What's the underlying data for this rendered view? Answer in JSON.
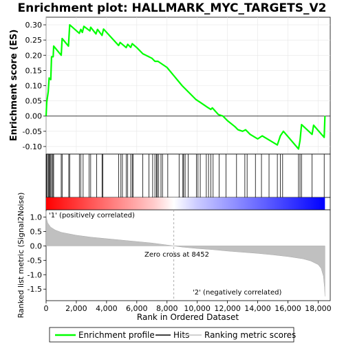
{
  "chart_data": {
    "title": "Enrichment plot: HALLMARK_MYC_TARGETS_V2",
    "panels": [
      {
        "type": "line",
        "name": "enrichment",
        "ylabel": "Enrichment score (ES)",
        "xlim": [
          0,
          18800
        ],
        "ylim": [
          -0.125,
          0.325
        ],
        "yticks": [
          -0.1,
          -0.05,
          0.0,
          0.05,
          0.1,
          0.15,
          0.2,
          0.25,
          0.3
        ],
        "ytick_labels": [
          "-0.10",
          "-0.05",
          "0.00",
          "0.05",
          "0.10",
          "0.15",
          "0.20",
          "0.25",
          "0.30"
        ],
        "series": [
          {
            "name": "Enrichment profile",
            "color": "#00ff00",
            "points": [
              [
                0,
                0.0
              ],
              [
                40,
                0.045
              ],
              [
                140,
                0.08
              ],
              [
                200,
                0.125
              ],
              [
                310,
                0.12
              ],
              [
                360,
                0.195
              ],
              [
                470,
                0.195
              ],
              [
                500,
                0.23
              ],
              [
                1000,
                0.2
              ],
              [
                1060,
                0.255
              ],
              [
                1480,
                0.23
              ],
              [
                1560,
                0.3
              ],
              [
                2200,
                0.272
              ],
              [
                2300,
                0.285
              ],
              [
                2400,
                0.275
              ],
              [
                2500,
                0.295
              ],
              [
                2900,
                0.28
              ],
              [
                2950,
                0.292
              ],
              [
                3300,
                0.27
              ],
              [
                3400,
                0.285
              ],
              [
                3700,
                0.265
              ],
              [
                3800,
                0.286
              ],
              [
                4800,
                0.232
              ],
              [
                4900,
                0.242
              ],
              [
                5300,
                0.225
              ],
              [
                5400,
                0.236
              ],
              [
                5600,
                0.226
              ],
              [
                5700,
                0.238
              ],
              [
                6000,
                0.225
              ],
              [
                6400,
                0.205
              ],
              [
                7000,
                0.19
              ],
              [
                7200,
                0.18
              ],
              [
                7400,
                0.18
              ],
              [
                8000,
                0.16
              ],
              [
                9000,
                0.1
              ],
              [
                9900,
                0.055
              ],
              [
                10200,
                0.045
              ],
              [
                10700,
                0.028
              ],
              [
                10900,
                0.022
              ],
              [
                11000,
                0.027
              ],
              [
                11400,
                0.005
              ],
              [
                11700,
                0.0
              ],
              [
                12000,
                -0.015
              ],
              [
                12500,
                -0.035
              ],
              [
                12700,
                -0.045
              ],
              [
                13000,
                -0.05
              ],
              [
                13200,
                -0.045
              ],
              [
                13500,
                -0.06
              ],
              [
                14000,
                -0.075
              ],
              [
                14300,
                -0.065
              ],
              [
                14800,
                -0.08
              ],
              [
                15300,
                -0.095
              ],
              [
                15500,
                -0.065
              ],
              [
                15700,
                -0.05
              ],
              [
                16700,
                -0.108
              ],
              [
                16800,
                -0.08
              ],
              [
                16900,
                -0.028
              ],
              [
                17600,
                -0.06
              ],
              [
                17700,
                -0.03
              ],
              [
                18400,
                -0.07
              ],
              [
                18450,
                0.0
              ]
            ]
          }
        ],
        "zero_line": 0.0
      },
      {
        "type": "rug",
        "name": "hits",
        "series_name": "Hits",
        "hit_ranks": [
          30,
          90,
          150,
          210,
          260,
          310,
          380,
          450,
          500,
          1000,
          1060,
          1500,
          1560,
          2200,
          2300,
          2450,
          2850,
          2950,
          3350,
          3700,
          3750,
          4800,
          4950,
          5050,
          5300,
          5400,
          5600,
          5700,
          5750,
          6400,
          6800,
          7050,
          7200,
          7300,
          7350,
          7450,
          7600,
          7700,
          8050,
          8800,
          9050,
          9100,
          9200,
          9400,
          9950,
          10050,
          10200,
          10600,
          10750,
          10900,
          11050,
          11450,
          11900,
          12600,
          13150,
          13300,
          13850,
          14250,
          14750,
          15300,
          15500,
          15650,
          16700,
          16800,
          16900,
          17600,
          18400
        ]
      },
      {
        "type": "heatmap",
        "name": "rank-colour-bar",
        "colors": {
          "positive": "#ff0000",
          "neutral": "#ffffff",
          "negative": "#0000ff"
        },
        "zero_cross": 8452
      },
      {
        "type": "area",
        "name": "ranked-metric",
        "ylabel": "Ranked list metric (Signal2Noise)",
        "xlabel": "Rank in Ordered Dataset",
        "ylim": [
          -1.9,
          1.25
        ],
        "yticks": [
          -1.5,
          -1.0,
          -0.5,
          0.0,
          0.5,
          1.0
        ],
        "ytick_labels": [
          "-1.5",
          "-1.0",
          "-0.5",
          "0.0",
          "0.5",
          "1.0"
        ],
        "xticks": [
          0,
          2000,
          4000,
          6000,
          8000,
          10000,
          12000,
          14000,
          16000,
          18000
        ],
        "xtick_labels": [
          "0",
          "2,000",
          "4,000",
          "6,000",
          "8,000",
          "10,000",
          "12,000",
          "14,000",
          "16,000",
          "18,000"
        ],
        "series_name": "Ranking metric scores",
        "color": "#c0c0c0",
        "points": [
          [
            0,
            1.2
          ],
          [
            30,
            0.95
          ],
          [
            100,
            0.8
          ],
          [
            300,
            0.65
          ],
          [
            600,
            0.55
          ],
          [
            1000,
            0.47
          ],
          [
            2000,
            0.37
          ],
          [
            3000,
            0.3
          ],
          [
            4000,
            0.25
          ],
          [
            5000,
            0.2
          ],
          [
            6000,
            0.15
          ],
          [
            7000,
            0.1
          ],
          [
            8000,
            0.03
          ],
          [
            8452,
            0.0
          ],
          [
            9000,
            -0.04
          ],
          [
            10000,
            -0.09
          ],
          [
            11000,
            -0.13
          ],
          [
            12000,
            -0.18
          ],
          [
            13000,
            -0.22
          ],
          [
            14000,
            -0.26
          ],
          [
            15000,
            -0.31
          ],
          [
            16000,
            -0.37
          ],
          [
            17000,
            -0.45
          ],
          [
            17500,
            -0.52
          ],
          [
            18000,
            -0.65
          ],
          [
            18200,
            -0.78
          ],
          [
            18350,
            -1.05
          ],
          [
            18420,
            -1.45
          ],
          [
            18450,
            -1.75
          ]
        ],
        "annotations": {
          "positive": "'1' (positively correlated)",
          "negative": "'2' (negatively correlated)",
          "zero_cross": "Zero cross at 8452"
        },
        "annotation_colors": {
          "positive": "#ff0000",
          "negative": "#0000ff"
        }
      }
    ],
    "legend": {
      "position": "bottom",
      "entries": [
        {
          "label": "Enrichment profile",
          "color": "#00ff00"
        },
        {
          "label": "Hits",
          "color": "#000000"
        },
        {
          "label": "Ranking metric scores",
          "color": "#c0c0c0"
        }
      ]
    }
  }
}
